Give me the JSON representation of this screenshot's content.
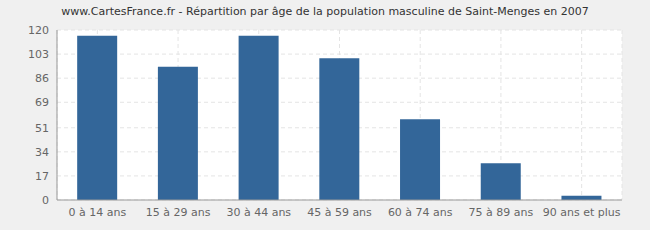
{
  "chart_data": {
    "type": "bar",
    "title": "www.CartesFrance.fr - Répartition par âge de la population masculine de Saint-Menges en 2007",
    "categories": [
      "0 à 14 ans",
      "15 à 29 ans",
      "30 à 44 ans",
      "45 à 59 ans",
      "60 à 74 ans",
      "75 à 89 ans",
      "90 ans et plus"
    ],
    "values": [
      116,
      94,
      116,
      100,
      57,
      26,
      3
    ],
    "color": "#336699",
    "ylim": [
      0,
      120
    ],
    "yticks": [
      0,
      17,
      34,
      51,
      69,
      86,
      103,
      120
    ],
    "grid": true
  }
}
